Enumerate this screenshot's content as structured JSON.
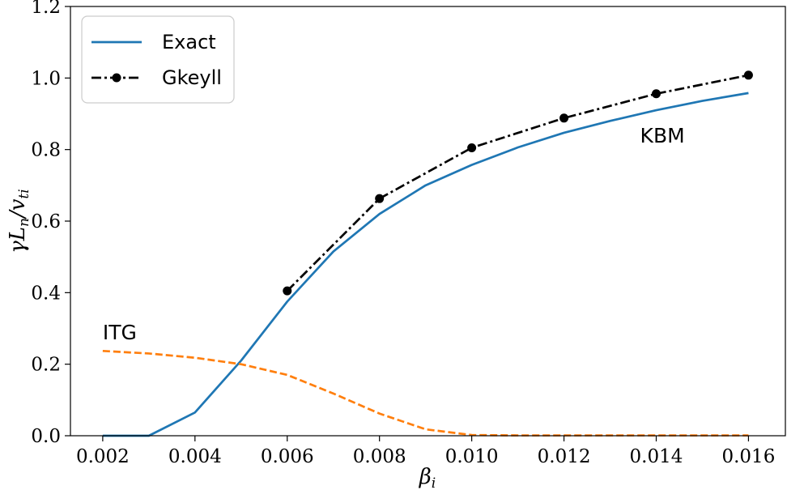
{
  "chart_data": {
    "type": "line",
    "xlabel": "β_i",
    "ylabel": "γL_n/v_ti",
    "xlim": [
      0.0013,
      0.0168
    ],
    "ylim": [
      0.0,
      1.2
    ],
    "xticks": [
      0.002,
      0.004,
      0.006,
      0.008,
      0.01,
      0.012,
      0.014,
      0.016
    ],
    "xtick_labels": [
      "0.002",
      "0.004",
      "0.006",
      "0.008",
      "0.010",
      "0.012",
      "0.014",
      "0.016"
    ],
    "yticks": [
      0.0,
      0.2,
      0.4,
      0.6,
      0.8,
      1.0,
      1.2
    ],
    "ytick_labels": [
      "0.0",
      "0.2",
      "0.4",
      "0.6",
      "0.8",
      "1.0",
      "1.2"
    ],
    "grid": false,
    "legend_position": "top-left",
    "series": [
      {
        "name": "Exact",
        "color": "#1f77b4",
        "style": "solid",
        "in_legend": true,
        "x": [
          0.002,
          0.003,
          0.004,
          0.005,
          0.006,
          0.007,
          0.008,
          0.009,
          0.01,
          0.011,
          0.012,
          0.013,
          0.014,
          0.015,
          0.016
        ],
        "y": [
          0.0,
          0.0,
          0.065,
          0.21,
          0.375,
          0.515,
          0.62,
          0.7,
          0.757,
          0.806,
          0.847,
          0.88,
          0.91,
          0.936,
          0.958
        ]
      },
      {
        "name": "Gkeyll",
        "color": "#000000",
        "style": "dashdot",
        "marker": "circle",
        "in_legend": true,
        "x": [
          0.006,
          0.008,
          0.01,
          0.012,
          0.014,
          0.016
        ],
        "y": [
          0.405,
          0.663,
          0.805,
          0.888,
          0.956,
          1.008
        ]
      },
      {
        "name": "",
        "color": "#ff7f0e",
        "style": "dashed",
        "in_legend": false,
        "x": [
          0.002,
          0.003,
          0.004,
          0.005,
          0.006,
          0.007,
          0.008,
          0.009,
          0.01,
          0.011,
          0.012,
          0.013,
          0.014,
          0.015,
          0.016
        ],
        "y": [
          0.237,
          0.23,
          0.218,
          0.2,
          0.17,
          0.118,
          0.062,
          0.018,
          0.002,
          0.001,
          0.001,
          0.001,
          0.001,
          0.001,
          0.001
        ]
      }
    ],
    "annotations": [
      {
        "text": "ITG",
        "x": 0.002,
        "y": 0.29
      },
      {
        "text": "KBM",
        "x": 0.01365,
        "y": 0.84
      }
    ]
  }
}
